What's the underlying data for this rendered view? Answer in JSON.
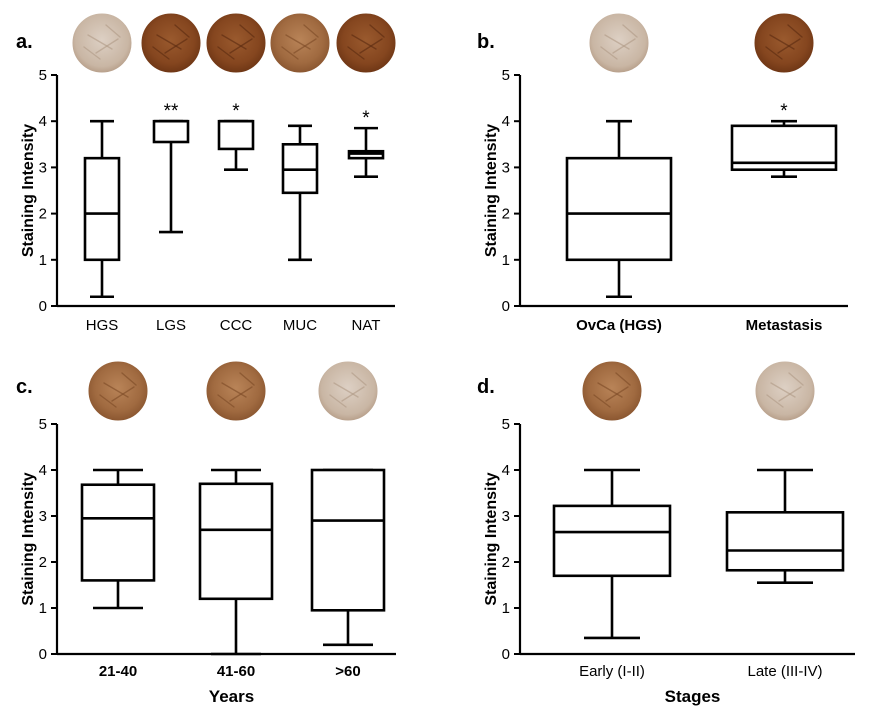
{
  "colors": {
    "axis": "#000000",
    "box_stroke": "#000000",
    "core_light": "#d2c2b3",
    "core_dark": "#8a4a22",
    "core_mid": "#a46a40"
  },
  "y_axis_title": "Staining Intensity",
  "chart_data": [
    {
      "panel": "a.",
      "type": "boxplot",
      "title": "",
      "xlabel": "",
      "ylabel": "Staining Intensity",
      "ylim": [
        0,
        5
      ],
      "yticks": [
        "0",
        "1",
        "2",
        "3",
        "4",
        "5"
      ],
      "categories": [
        "HGS",
        "LGS",
        "CCC",
        "MUC",
        "NAT"
      ],
      "category_style": "normal",
      "boxes": [
        {
          "min": 0.2,
          "q1": 1.0,
          "median": 2.0,
          "q3": 3.2,
          "max": 4.0
        },
        {
          "min": 1.6,
          "q1": 3.55,
          "median": 4.0,
          "q3": 4.0,
          "max": 4.0
        },
        {
          "min": 2.95,
          "q1": 3.4,
          "median": 4.0,
          "q3": 4.0,
          "max": 4.0
        },
        {
          "min": 1.0,
          "q1": 2.45,
          "median": 2.95,
          "q3": 3.5,
          "max": 3.9
        },
        {
          "min": 2.8,
          "q1": 3.2,
          "median": 3.3,
          "q3": 3.35,
          "max": 3.85
        }
      ],
      "significance": [
        "",
        "**",
        "*",
        "",
        "*"
      ],
      "core_icons": [
        "core_light",
        "core_dark",
        "core_dark",
        "core_mid",
        "core_dark"
      ]
    },
    {
      "panel": "b.",
      "type": "boxplot",
      "title": "",
      "xlabel": "",
      "ylabel": "Staining Intensity",
      "ylim": [
        0,
        5
      ],
      "yticks": [
        "0",
        "1",
        "2",
        "3",
        "4",
        "5"
      ],
      "categories": [
        "OvCa (HGS)",
        "Metastasis"
      ],
      "category_style": "bold",
      "boxes": [
        {
          "min": 0.2,
          "q1": 1.0,
          "median": 2.0,
          "q3": 3.2,
          "max": 4.0
        },
        {
          "min": 2.8,
          "q1": 2.95,
          "median": 3.1,
          "q3": 3.9,
          "max": 4.0
        }
      ],
      "significance": [
        "",
        "*"
      ],
      "core_icons": [
        "core_light",
        "core_dark"
      ]
    },
    {
      "panel": "c.",
      "type": "boxplot",
      "title": "",
      "xlabel": "Years",
      "ylabel": "Staining Intensity",
      "ylim": [
        0,
        5
      ],
      "yticks": [
        "0",
        "1",
        "2",
        "3",
        "4",
        "5"
      ],
      "categories": [
        "21-40",
        "41-60",
        ">60"
      ],
      "category_style": "bold",
      "boxes": [
        {
          "min": 1.0,
          "q1": 1.6,
          "median": 2.95,
          "q3": 3.68,
          "max": 4.0
        },
        {
          "min": 0.0,
          "q1": 1.2,
          "median": 2.7,
          "q3": 3.7,
          "max": 4.0
        },
        {
          "min": 0.2,
          "q1": 0.95,
          "median": 2.9,
          "q3": 4.0,
          "max": 4.0
        }
      ],
      "significance": [
        "",
        "",
        ""
      ],
      "core_icons": [
        "core_mid",
        "core_mid",
        "core_light"
      ]
    },
    {
      "panel": "d.",
      "type": "boxplot",
      "title": "",
      "xlabel": "Stages",
      "ylabel": "Staining Intensity",
      "ylim": [
        0,
        5
      ],
      "yticks": [
        "0",
        "1",
        "2",
        "3",
        "4",
        "5"
      ],
      "categories": [
        "Early (I-II)",
        "Late (III-IV)"
      ],
      "category_style": "normal",
      "boxes": [
        {
          "min": 0.35,
          "q1": 1.7,
          "median": 2.65,
          "q3": 3.22,
          "max": 4.0
        },
        {
          "min": 1.55,
          "q1": 1.82,
          "median": 2.25,
          "q3": 3.08,
          "max": 4.0
        }
      ],
      "significance": [
        "",
        ""
      ],
      "core_icons": [
        "core_mid",
        "core_light"
      ]
    }
  ]
}
